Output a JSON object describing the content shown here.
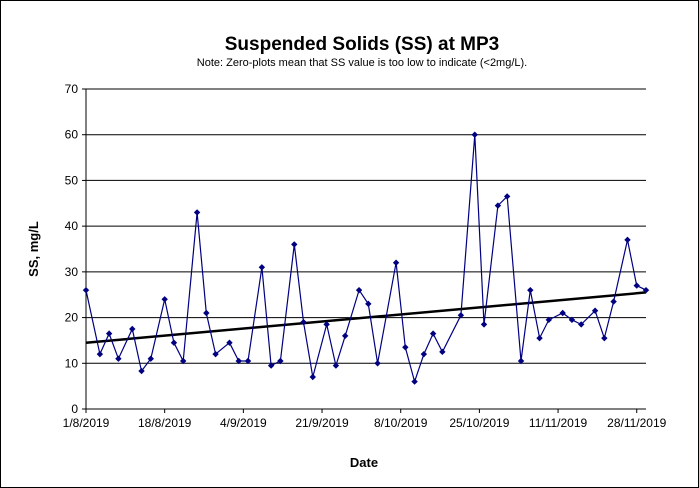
{
  "chart_data": {
    "type": "line",
    "title": "Suspended Solids (SS) at MP3",
    "subtitle": "Note: Zero-plots mean that SS value is too low to indicate (<2mg/L).",
    "xlabel": "Date",
    "ylabel": "SS, mg/L",
    "ylim": [
      0,
      70
    ],
    "yticks": [
      0,
      10,
      20,
      30,
      40,
      50,
      60,
      70
    ],
    "xlim": [
      "2019-08-01",
      "2019-11-30"
    ],
    "xtick_labels": [
      "1/8/2019",
      "18/8/2019",
      "4/9/2019",
      "21/9/2019",
      "8/10/2019",
      "25/10/2019",
      "11/11/2019",
      "28/11/2019"
    ],
    "xtick_dates": [
      "2019-08-01",
      "2019-08-18",
      "2019-09-04",
      "2019-09-21",
      "2019-10-08",
      "2019-10-25",
      "2019-11-11",
      "2019-11-28"
    ],
    "grid": "horizontal",
    "line_color": "#000080",
    "trend_color": "#000000",
    "series": [
      {
        "points": [
          [
            "2019-08-01",
            26
          ],
          [
            "2019-08-04",
            12
          ],
          [
            "2019-08-06",
            16.5
          ],
          [
            "2019-08-08",
            11
          ],
          [
            "2019-08-11",
            17.5
          ],
          [
            "2019-08-13",
            8.3
          ],
          [
            "2019-08-15",
            11
          ],
          [
            "2019-08-18",
            24
          ],
          [
            "2019-08-20",
            14.5
          ],
          [
            "2019-08-22",
            10.5
          ],
          [
            "2019-08-25",
            43
          ],
          [
            "2019-08-27",
            21
          ],
          [
            "2019-08-29",
            12
          ],
          [
            "2019-09-01",
            14.5
          ],
          [
            "2019-09-03",
            10.5
          ],
          [
            "2019-09-05",
            10.5
          ],
          [
            "2019-09-08",
            31
          ],
          [
            "2019-09-10",
            9.5
          ],
          [
            "2019-09-12",
            10.5
          ],
          [
            "2019-09-15",
            36
          ],
          [
            "2019-09-17",
            19
          ],
          [
            "2019-09-19",
            7
          ],
          [
            "2019-09-22",
            18.5
          ],
          [
            "2019-09-24",
            9.5
          ],
          [
            "2019-09-26",
            16
          ],
          [
            "2019-09-29",
            26
          ],
          [
            "2019-10-01",
            23
          ],
          [
            "2019-10-03",
            10
          ],
          [
            "2019-10-07",
            32
          ],
          [
            "2019-10-09",
            13.5
          ],
          [
            "2019-10-11",
            6
          ],
          [
            "2019-10-13",
            12
          ],
          [
            "2019-10-15",
            16.5
          ],
          [
            "2019-10-17",
            12.5
          ],
          [
            "2019-10-21",
            20.5
          ],
          [
            "2019-10-24",
            60
          ],
          [
            "2019-10-26",
            18.5
          ],
          [
            "2019-10-29",
            44.5
          ],
          [
            "2019-10-31",
            46.5
          ],
          [
            "2019-11-03",
            10.5
          ],
          [
            "2019-11-05",
            26
          ],
          [
            "2019-11-07",
            15.5
          ],
          [
            "2019-11-09",
            19.5
          ],
          [
            "2019-11-12",
            21
          ],
          [
            "2019-11-14",
            19.5
          ],
          [
            "2019-11-16",
            18.5
          ],
          [
            "2019-11-19",
            21.5
          ],
          [
            "2019-11-21",
            15.5
          ],
          [
            "2019-11-23",
            23.5
          ],
          [
            "2019-11-26",
            37
          ],
          [
            "2019-11-28",
            27
          ],
          [
            "2019-11-30",
            26
          ]
        ]
      }
    ],
    "trendline": {
      "start": [
        "2019-08-01",
        14.5
      ],
      "end": [
        "2019-11-30",
        25.5
      ]
    }
  }
}
